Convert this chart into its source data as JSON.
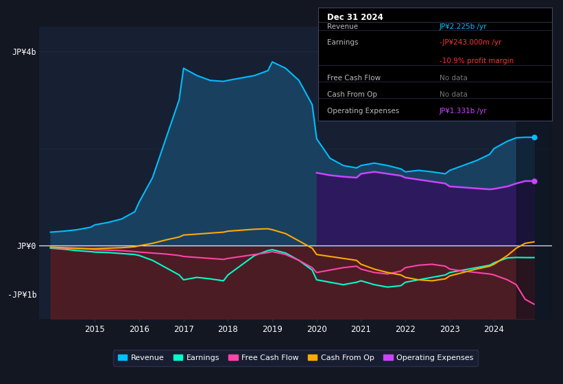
{
  "bg_color": "#131722",
  "plot_bg_color": "#162032",
  "grid_color": "#2a3550",
  "title_text": "Dec 31 2024",
  "info_box": {
    "Revenue": {
      "label": "Revenue",
      "value": "JP¥2.225b /yr",
      "vcolor": "#00bfff",
      "sub": null,
      "subcolor": null
    },
    "Earnings": {
      "label": "Earnings",
      "value": "-JP¥243.000m /yr",
      "vcolor": "#ff3333",
      "sub": "-10.9% profit margin",
      "subcolor": "#ff3333"
    },
    "Free Cash Flow": {
      "label": "Free Cash Flow",
      "value": "No data",
      "vcolor": "#888888",
      "sub": null,
      "subcolor": null
    },
    "Cash From Op": {
      "label": "Cash From Op",
      "value": "No data",
      "vcolor": "#888888",
      "sub": null,
      "subcolor": null
    },
    "Operating Expenses": {
      "label": "Operating Expenses",
      "value": "JP¥1.331b /yr",
      "vcolor": "#cc44ff",
      "sub": null,
      "subcolor": null
    }
  },
  "years": [
    2014.0,
    2014.3,
    2014.6,
    2014.9,
    2015.0,
    2015.3,
    2015.6,
    2015.9,
    2016.0,
    2016.3,
    2016.6,
    2016.9,
    2017.0,
    2017.3,
    2017.6,
    2017.9,
    2018.0,
    2018.3,
    2018.6,
    2018.9,
    2019.0,
    2019.3,
    2019.6,
    2019.9,
    2020.0,
    2020.3,
    2020.6,
    2020.9,
    2021.0,
    2021.3,
    2021.6,
    2021.9,
    2022.0,
    2022.3,
    2022.6,
    2022.9,
    2023.0,
    2023.3,
    2023.6,
    2023.9,
    2024.0,
    2024.3,
    2024.5,
    2024.7,
    2024.9
  ],
  "revenue": [
    0.28,
    0.3,
    0.33,
    0.38,
    0.43,
    0.48,
    0.55,
    0.7,
    0.9,
    1.4,
    2.2,
    3.0,
    3.65,
    3.5,
    3.4,
    3.38,
    3.4,
    3.45,
    3.5,
    3.6,
    3.78,
    3.65,
    3.4,
    2.9,
    2.2,
    1.8,
    1.65,
    1.6,
    1.65,
    1.7,
    1.65,
    1.58,
    1.52,
    1.55,
    1.52,
    1.48,
    1.55,
    1.65,
    1.75,
    1.88,
    2.0,
    2.15,
    2.22,
    2.23,
    2.23
  ],
  "earnings": [
    -0.05,
    -0.07,
    -0.1,
    -0.12,
    -0.13,
    -0.14,
    -0.16,
    -0.18,
    -0.2,
    -0.3,
    -0.45,
    -0.6,
    -0.7,
    -0.65,
    -0.68,
    -0.72,
    -0.6,
    -0.4,
    -0.2,
    -0.1,
    -0.08,
    -0.15,
    -0.3,
    -0.5,
    -0.7,
    -0.75,
    -0.8,
    -0.75,
    -0.72,
    -0.8,
    -0.85,
    -0.82,
    -0.75,
    -0.7,
    -0.65,
    -0.6,
    -0.55,
    -0.5,
    -0.45,
    -0.4,
    -0.35,
    -0.25,
    -0.24,
    -0.243,
    -0.243
  ],
  "free_cash_flow": [
    -0.04,
    -0.05,
    -0.06,
    -0.07,
    -0.08,
    -0.09,
    -0.1,
    -0.12,
    -0.13,
    -0.15,
    -0.17,
    -0.2,
    -0.22,
    -0.24,
    -0.26,
    -0.28,
    -0.26,
    -0.22,
    -0.18,
    -0.14,
    -0.12,
    -0.18,
    -0.3,
    -0.45,
    -0.55,
    -0.5,
    -0.45,
    -0.42,
    -0.48,
    -0.55,
    -0.58,
    -0.52,
    -0.45,
    -0.4,
    -0.38,
    -0.42,
    -0.48,
    -0.52,
    -0.55,
    -0.58,
    -0.6,
    -0.7,
    -0.8,
    -1.1,
    -1.2
  ],
  "cash_from_op": [
    -0.03,
    -0.04,
    -0.05,
    -0.06,
    -0.06,
    -0.05,
    -0.04,
    -0.02,
    0.0,
    0.05,
    0.12,
    0.18,
    0.22,
    0.24,
    0.26,
    0.28,
    0.3,
    0.32,
    0.34,
    0.35,
    0.33,
    0.25,
    0.1,
    -0.05,
    -0.18,
    -0.22,
    -0.26,
    -0.3,
    -0.38,
    -0.48,
    -0.55,
    -0.6,
    -0.65,
    -0.7,
    -0.72,
    -0.68,
    -0.62,
    -0.55,
    -0.48,
    -0.42,
    -0.38,
    -0.2,
    -0.05,
    0.05,
    0.08
  ],
  "op_expenses": [
    null,
    null,
    null,
    null,
    null,
    null,
    null,
    null,
    null,
    null,
    null,
    null,
    null,
    null,
    null,
    null,
    null,
    null,
    null,
    null,
    null,
    null,
    null,
    null,
    1.5,
    1.45,
    1.42,
    1.4,
    1.48,
    1.52,
    1.48,
    1.44,
    1.4,
    1.36,
    1.32,
    1.28,
    1.22,
    1.2,
    1.18,
    1.16,
    1.17,
    1.22,
    1.28,
    1.33,
    1.331
  ],
  "revenue_color": "#00bfff",
  "revenue_fill_color": "#1a4060",
  "earnings_color": "#00ffcc",
  "free_cash_flow_color": "#ff44aa",
  "cash_from_op_color": "#ffaa00",
  "op_expenses_color": "#cc44ff",
  "op_expenses_fill_color": "#2d1a5e",
  "red_fill_color": "#7a1a1a",
  "ylim": [
    -1.5,
    4.5
  ],
  "xlim": [
    2013.75,
    2025.3
  ],
  "y_zero": 0,
  "y_4b": 4,
  "y_2b": 2,
  "y_neg1b": -1,
  "xticks": [
    2015,
    2016,
    2017,
    2018,
    2019,
    2020,
    2021,
    2022,
    2023,
    2024
  ],
  "legend_items": [
    {
      "label": "Revenue",
      "color": "#00bfff"
    },
    {
      "label": "Earnings",
      "color": "#00ffcc"
    },
    {
      "label": "Free Cash Flow",
      "color": "#ff44aa"
    },
    {
      "label": "Cash From Op",
      "color": "#ffaa00"
    },
    {
      "label": "Operating Expenses",
      "color": "#cc44ff"
    }
  ],
  "info_box_rows": [
    {
      "label": "Revenue",
      "value": "JP¥2.225b /yr",
      "vcolor": "#00bfff",
      "sub": null,
      "subcolor": null
    },
    {
      "label": "Earnings",
      "value": "-JP¥243.000m /yr",
      "vcolor": "#ff3333",
      "sub": "-10.9% profit margin",
      "subcolor": "#ff3333"
    },
    {
      "label": "Free Cash Flow",
      "value": "No data",
      "vcolor": "#777777",
      "sub": null,
      "subcolor": null
    },
    {
      "label": "Cash From Op",
      "value": "No data",
      "vcolor": "#777777",
      "sub": null,
      "subcolor": null
    },
    {
      "label": "Operating Expenses",
      "value": "JP¥1.331b /yr",
      "vcolor": "#cc44ff",
      "sub": null,
      "subcolor": null
    }
  ]
}
